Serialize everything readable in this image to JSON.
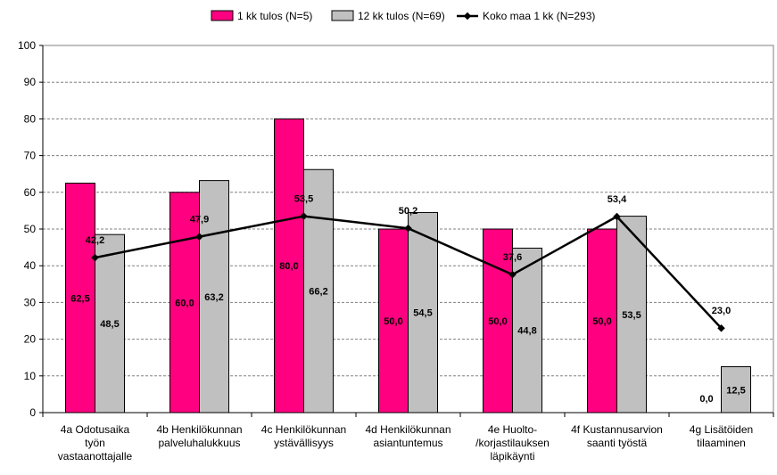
{
  "chart_data": {
    "type": "bar",
    "title": "",
    "xlabel": "",
    "ylabel": "",
    "ylim": [
      0,
      100
    ],
    "yticks": [
      "0",
      "10",
      "20",
      "30",
      "40",
      "50",
      "60",
      "70",
      "80",
      "90",
      "100"
    ],
    "grid": "horizontal dashed",
    "legend_position": "top",
    "categories": [
      [
        "4a Odotusaika",
        "työn",
        "vastaanottajalle"
      ],
      [
        "4b Henkilökunnan",
        "palveluhalukkuus"
      ],
      [
        "4c Henkilökunnan",
        "ystävällisyys"
      ],
      [
        "4d Henkilökunnan",
        "asiantuntemus"
      ],
      [
        "4e Huolto-",
        "/korjastilauksen",
        "läpikäynti"
      ],
      [
        "4f Kustannusarvion",
        "saanti työstä"
      ],
      [
        "4g Lisätöiden",
        "tilaaminen"
      ]
    ],
    "series": [
      {
        "name": "1 kk tulos (N=5)",
        "kind": "bar",
        "color": "#ff0080",
        "values": [
          62.5,
          60.0,
          80.0,
          50.0,
          50.0,
          50.0,
          0.0
        ],
        "labels": [
          "62,5",
          "60,0",
          "80,0",
          "50,0",
          "50,0",
          "50,0",
          "0,0"
        ]
      },
      {
        "name": "12 kk tulos (N=69)",
        "kind": "bar",
        "color": "#c0c0c0",
        "values": [
          48.5,
          63.2,
          66.2,
          54.5,
          44.8,
          53.5,
          12.5
        ],
        "labels": [
          "48,5",
          "63,2",
          "66,2",
          "54,5",
          "44,8",
          "53,5",
          "12,5"
        ]
      },
      {
        "name": "Koko maa 1 kk (N=293)",
        "kind": "line",
        "color": "#000000",
        "values": [
          42.2,
          47.9,
          53.5,
          50.2,
          37.6,
          53.4,
          23.0
        ],
        "labels": [
          "42,2",
          "47,9",
          "53,5",
          "50,2",
          "37,6",
          "53,4",
          "23,0"
        ]
      }
    ]
  }
}
